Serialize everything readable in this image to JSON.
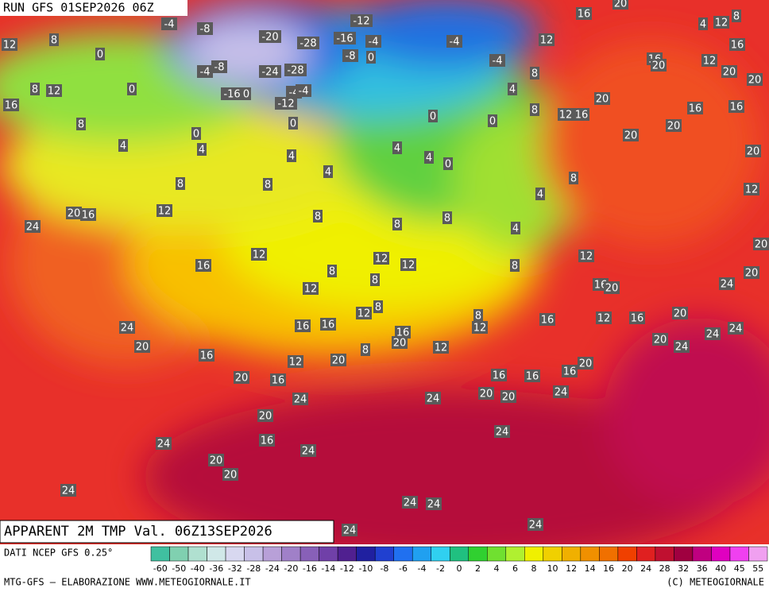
{
  "header": {
    "run": "RUN GFS 01SEP2026 06Z",
    "title": "APPARENT 2M TMP Val. 06Z13SEP2026"
  },
  "footer": {
    "source": "DATI NCEP GFS 0.25°",
    "credit": "MTG-GFS — ELABORAZIONE WWW.METEOGIORNALE.IT",
    "copyright": "(C) METEOGIORNALE"
  },
  "colorbar": {
    "ticks": [
      -60,
      -50,
      -40,
      -36,
      -32,
      -28,
      -24,
      -20,
      -16,
      -14,
      -12,
      -10,
      -8,
      -6,
      -4,
      -2,
      0,
      2,
      4,
      6,
      8,
      10,
      12,
      14,
      16,
      20,
      24,
      28,
      32,
      36,
      40,
      45,
      55
    ],
    "colors": [
      "#40c0a0",
      "#80d0b0",
      "#b0e0d0",
      "#d0e8e8",
      "#d8d8f0",
      "#c8c0e8",
      "#b8a0d8",
      "#a080c8",
      "#8860b8",
      "#7040a8",
      "#502090",
      "#2020a0",
      "#2040d0",
      "#2070f0",
      "#20a0f0",
      "#30d0f0",
      "#20c080",
      "#30d030",
      "#70e030",
      "#b0f030",
      "#f0f000",
      "#f0d000",
      "#f0b000",
      "#f09000",
      "#f07000",
      "#f04000",
      "#e02020",
      "#c01030",
      "#a00040",
      "#c00080",
      "#e000c0",
      "#f040f0",
      "#f0a0f0"
    ]
  },
  "map_labels": [
    -4,
    -8,
    -12,
    -20,
    -28,
    -16,
    -4,
    -4,
    -4,
    -8,
    0,
    16,
    20,
    4,
    12,
    8,
    12,
    16,
    12,
    8,
    0,
    16,
    20,
    12,
    20,
    20,
    -4,
    -8,
    -24,
    -28,
    8,
    12,
    0,
    -16,
    0,
    -4,
    -4,
    -12,
    4,
    8,
    20,
    16,
    8,
    0,
    0,
    0,
    8,
    12,
    16,
    16,
    16,
    20,
    20,
    0,
    4,
    4,
    4,
    4,
    4,
    0,
    20,
    4,
    8,
    8,
    8,
    4,
    12,
    20,
    16,
    12,
    8,
    8,
    8,
    24,
    4,
    12,
    12,
    12,
    16,
    8,
    8,
    8,
    12,
    20,
    12,
    20,
    16,
    20,
    24,
    8,
    12,
    8,
    12,
    16,
    16,
    24,
    16,
    12,
    16,
    20,
    24,
    24,
    16,
    20,
    8,
    12,
    20,
    16,
    12,
    20,
    20,
    24,
    20,
    16,
    16,
    16,
    20,
    16,
    24,
    24,
    20,
    20,
    24,
    20,
    24,
    24,
    16,
    24,
    20,
    20,
    24,
    24,
    24,
    24,
    24
  ]
}
